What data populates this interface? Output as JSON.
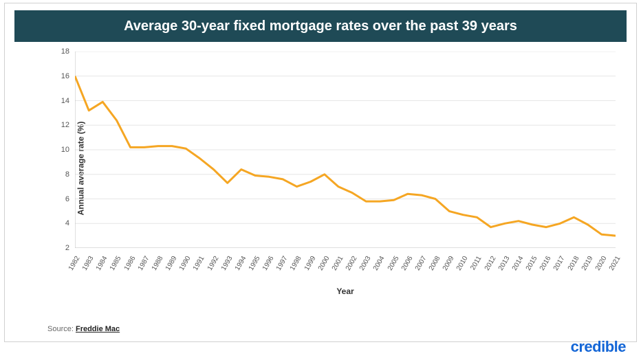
{
  "title": "Average 30-year fixed mortgage rates over the past 39 years",
  "title_bg": "#1f4a56",
  "title_color": "#ffffff",
  "title_fontsize": 20,
  "chart": {
    "type": "line",
    "years": [
      1982,
      1983,
      1984,
      1985,
      1986,
      1987,
      1988,
      1989,
      1990,
      1991,
      1992,
      1993,
      1994,
      1995,
      1996,
      1997,
      1998,
      1999,
      2000,
      2001,
      2002,
      2003,
      2004,
      2005,
      2006,
      2007,
      2008,
      2009,
      2010,
      2011,
      2012,
      2013,
      2014,
      2015,
      2016,
      2017,
      2018,
      2019,
      2020,
      2021
    ],
    "values": [
      16.0,
      13.2,
      13.9,
      12.4,
      10.2,
      10.2,
      10.3,
      10.3,
      10.1,
      9.3,
      8.4,
      7.3,
      8.4,
      7.9,
      7.8,
      7.6,
      7.0,
      7.4,
      8.0,
      7.0,
      6.5,
      5.8,
      5.8,
      5.9,
      6.4,
      6.3,
      6.0,
      5.0,
      4.7,
      4.5,
      3.7,
      4.0,
      4.2,
      3.9,
      3.7,
      4.0,
      4.5,
      3.9,
      3.1,
      3.0
    ],
    "line_color": "#f5a623",
    "line_width": 3,
    "ylim": [
      2,
      18
    ],
    "ytick_step": 2,
    "yticks": [
      2,
      4,
      6,
      8,
      10,
      12,
      14,
      16,
      18
    ],
    "x_tick_rotation": -60,
    "grid_color": "#e6e6e6",
    "axis_color": "#bfbfbf",
    "background": "#ffffff",
    "ylabel": "Annual average rate (%)",
    "xlabel": "Year",
    "label_fontsize": 12,
    "tick_fontsize": 11,
    "tick_color": "#555555"
  },
  "source_prefix": "Source: ",
  "source_name": "Freddie Mac",
  "logo_text": "credible",
  "logo_color": "#1466d6",
  "logo_fontsize": 22
}
